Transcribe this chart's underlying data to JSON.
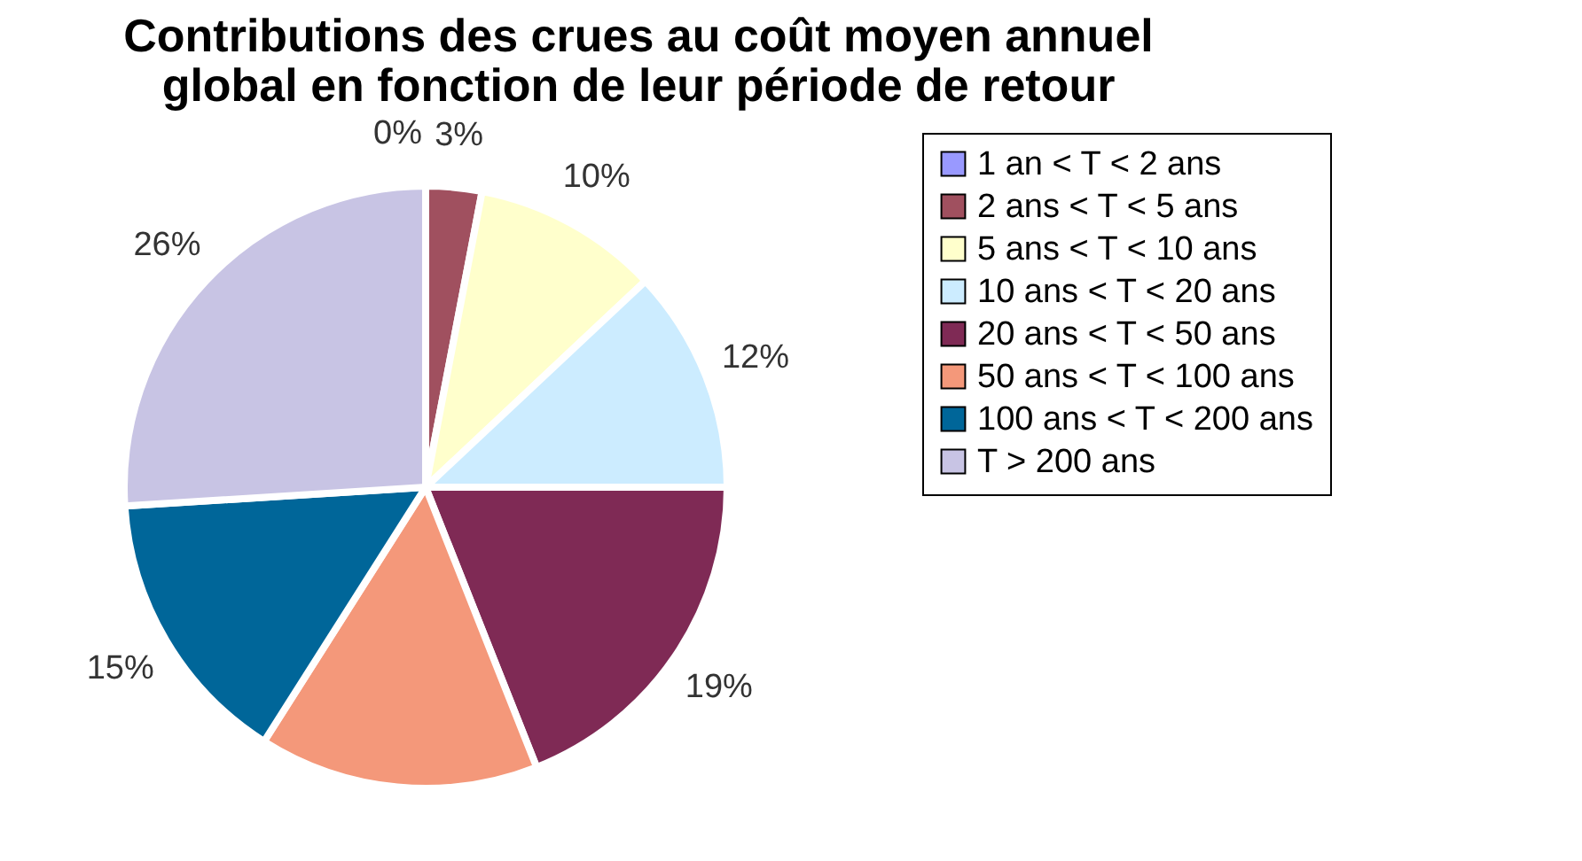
{
  "chart_data": {
    "type": "pie",
    "title": "Contributions des crues au coût moyen annuel\nglobal en fonction de leur période de retour",
    "categories": [
      "1 an < T < 2 ans",
      "2 ans < T < 5 ans",
      "5 ans < T < 10 ans",
      "10 ans < T < 20 ans",
      "20 ans < T < 50 ans",
      "50 ans < T < 100 ans",
      "100 ans < T < 200 ans",
      "T > 200 ans"
    ],
    "values": [
      0,
      3,
      10,
      12,
      19,
      15,
      15,
      26
    ],
    "value_labels": [
      "0%",
      "3%",
      "10%",
      "12%",
      "19%",
      null,
      "15%",
      "26%"
    ],
    "colors": [
      "#9999ff",
      "#a0505f",
      "#ffffcc",
      "#ccecff",
      "#7f2a55",
      "#f4987a",
      "#006699",
      "#c8c4e4"
    ],
    "legend": "right"
  }
}
